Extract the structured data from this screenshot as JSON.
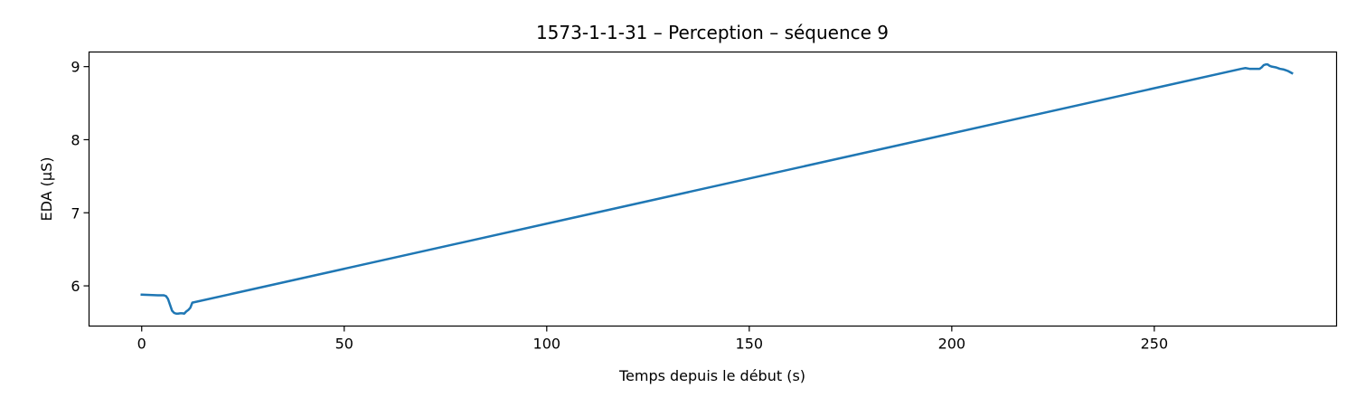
{
  "chart_data": {
    "type": "line",
    "title": "1573-1-1-31 – Perception – séquence 9",
    "xlabel": "Temps depuis le début (s)",
    "ylabel": "EDA (µS)",
    "xlim": [
      -13,
      295
    ],
    "ylim": [
      5.45,
      9.2
    ],
    "xticks": [
      0,
      50,
      100,
      150,
      200,
      250
    ],
    "yticks": [
      6,
      7,
      8,
      9
    ],
    "grid": false,
    "legend": "none",
    "line_color": "#1f77b4",
    "series": [
      {
        "x": [
          0,
          2,
          4,
          5.5,
          6,
          6.5,
          7,
          7.5,
          8,
          8.5,
          9,
          9.5,
          10,
          10.5,
          11,
          11.5,
          12,
          12.5,
          271.5,
          272.5,
          273.5,
          275,
          276,
          276.5,
          277,
          277.5,
          278,
          278.5,
          279,
          280,
          281,
          282,
          282.5,
          283,
          284
        ],
        "y": [
          5.88,
          5.875,
          5.87,
          5.87,
          5.86,
          5.82,
          5.74,
          5.66,
          5.63,
          5.62,
          5.62,
          5.625,
          5.625,
          5.62,
          5.65,
          5.67,
          5.7,
          5.77,
          8.97,
          8.98,
          8.97,
          8.97,
          8.97,
          8.99,
          9.02,
          9.03,
          9.03,
          9.01,
          9.0,
          8.99,
          8.97,
          8.96,
          8.95,
          8.94,
          8.91
        ]
      }
    ]
  }
}
